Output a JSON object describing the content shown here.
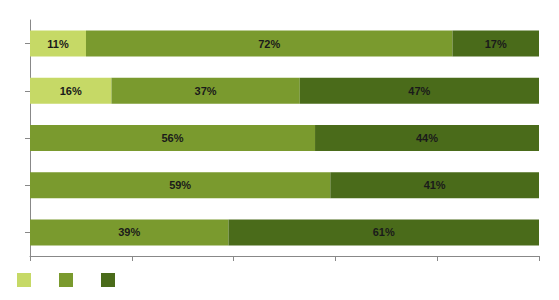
{
  "chart_data": {
    "type": "bar",
    "orientation": "horizontal",
    "stacked": true,
    "categories": [
      null,
      null,
      null,
      null,
      null
    ],
    "series": [
      {
        "color": "#c6d966",
        "values": [
          11,
          16,
          0,
          0,
          0
        ],
        "value_labels": [
          "11%",
          "16%",
          null,
          null,
          null
        ]
      },
      {
        "color": "#7a9a2e",
        "values": [
          72,
          37,
          56,
          59,
          39
        ],
        "value_labels": [
          "72%",
          "37%",
          "56%",
          "59%",
          "39%"
        ]
      },
      {
        "color": "#4a6b1a",
        "values": [
          17,
          47,
          44,
          41,
          61
        ],
        "value_labels": [
          "17%",
          "47%",
          "44%",
          "41%",
          "61%"
        ]
      }
    ],
    "xlim": [
      0,
      100
    ],
    "xticks": [
      0,
      20,
      40,
      60,
      80,
      100
    ],
    "data_labels": true,
    "tick_labels": false,
    "grid": false,
    "legend": "lower left"
  }
}
